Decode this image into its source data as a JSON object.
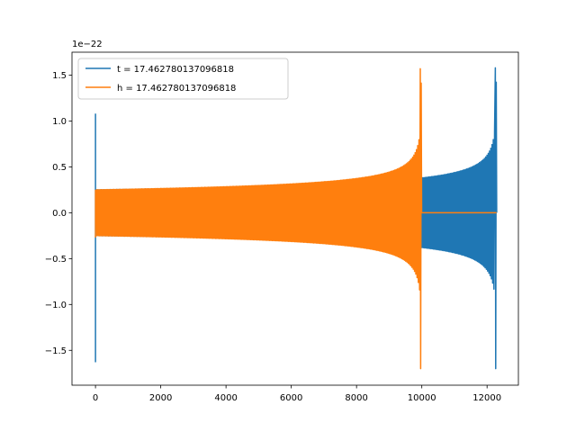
{
  "chart_data": {
    "type": "line",
    "title": "",
    "xlabel": "",
    "ylabel": "",
    "y_offset_label": "1e−22",
    "xlim": [
      -720,
      12960
    ],
    "ylim": [
      -1.88,
      1.75
    ],
    "x_ticks": [
      0,
      2000,
      4000,
      6000,
      8000,
      10000,
      12000
    ],
    "y_ticks": [
      -1.5,
      -1.0,
      -0.5,
      0.0,
      0.5,
      1.0,
      1.5
    ],
    "x_tick_labels": [
      "0",
      "2000",
      "4000",
      "6000",
      "8000",
      "10000",
      "12000"
    ],
    "y_tick_labels": [
      "−1.5",
      "−1.0",
      "−0.5",
      "0.0",
      "0.5",
      "1.0",
      "1.5"
    ],
    "grid": false,
    "legend_position": "top-left",
    "series": [
      {
        "name": "t = 17.462780137096818",
        "color": "#1f77b4",
        "start_x": 0,
        "merger_x": 12270,
        "end_x": 12290,
        "initial_spike": [
          1.08,
          -1.63
        ],
        "base_amplitude": 0.25,
        "amplitude_before_merger": 1.58,
        "min_value": -1.7
      },
      {
        "name": "h = 17.462780137096818",
        "color": "#ff7f0e",
        "start_x": 0,
        "merger_x": 9970,
        "end_x": 12290,
        "initial_spike": [
          0.25,
          -0.27
        ],
        "base_amplitude": 0.25,
        "amplitude_before_merger": 1.57,
        "min_value": -1.7
      }
    ]
  }
}
